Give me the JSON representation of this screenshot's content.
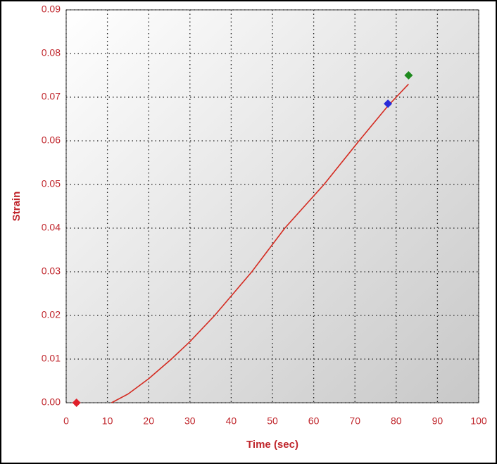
{
  "chart_data": {
    "type": "line",
    "x_label": "Time (sec)",
    "y_label": "Strain",
    "x": [
      11,
      15,
      20,
      25.5,
      30,
      36,
      45,
      53,
      62.5,
      71,
      78,
      80,
      83
    ],
    "series": [
      {
        "color": "#d42a20",
        "values": [
          0,
          0.002,
          0.0055,
          0.01,
          0.014,
          0.02,
          0.03,
          0.04,
          0.05,
          0.06,
          0.068,
          0.07,
          0.073
        ]
      }
    ],
    "markers": [
      {
        "x": 2.5,
        "y": 0,
        "color": "#e0202a"
      },
      {
        "x": 78,
        "y": 0.0685,
        "color": "#2a2ad8"
      },
      {
        "x": 83,
        "y": 0.075,
        "color": "#1e8a1e"
      }
    ],
    "xlim": [
      0,
      100
    ],
    "ylim": [
      0,
      0.09
    ],
    "xticks": [
      0,
      10,
      20,
      30,
      40,
      50,
      60,
      70,
      80,
      90,
      100
    ],
    "yticks": [
      {
        "value": 0,
        "label": "0.00"
      },
      0.01,
      0.02,
      0.03,
      0.04,
      0.05,
      0.06,
      0.07,
      0.08,
      0.09
    ],
    "grid": true
  }
}
